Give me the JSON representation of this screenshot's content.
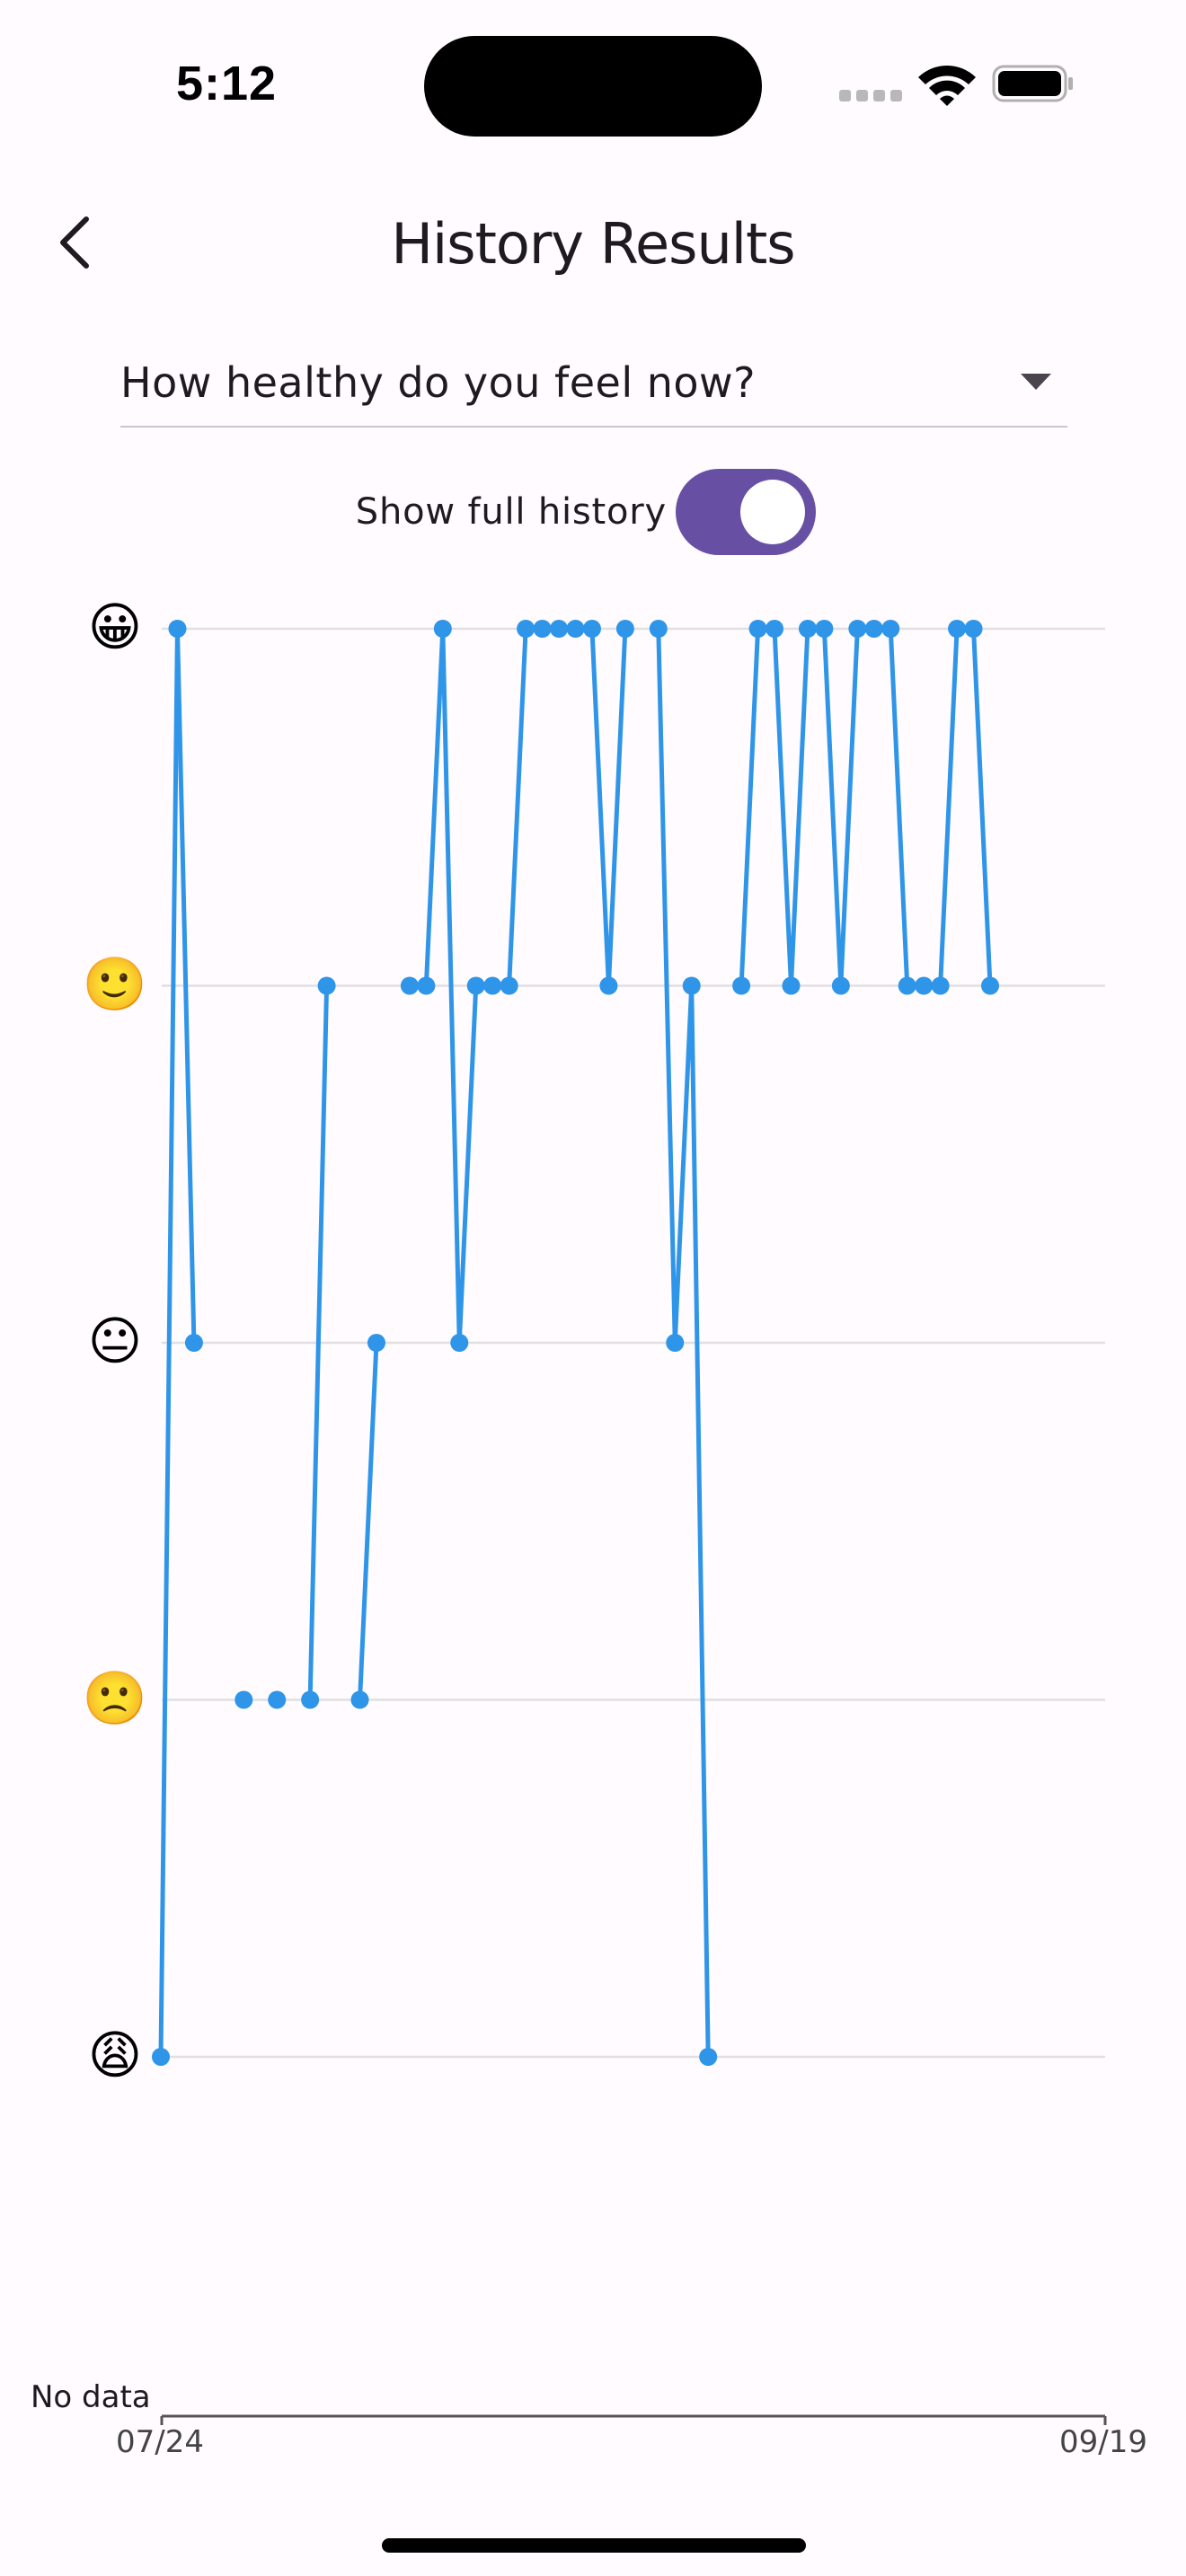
{
  "status_bar": {
    "time": "5:12"
  },
  "header": {
    "title": "History Results"
  },
  "question_select": {
    "selected": "How healthy do you feel now?"
  },
  "history_toggle": {
    "label": "Show full history",
    "checked": true
  },
  "colors": {
    "series": "#2f95e8",
    "accent": "#6750a4",
    "grid": "#e0e0e0"
  },
  "chart_data": {
    "type": "line",
    "y_levels": [
      {
        "value": 1,
        "emoji": "😩"
      },
      {
        "value": 2,
        "emoji": "🙁"
      },
      {
        "value": 3,
        "emoji": "😐"
      },
      {
        "value": 4,
        "emoji": "🙂"
      },
      {
        "value": 5,
        "emoji": "😀"
      }
    ],
    "ylim": [
      1,
      5
    ],
    "x_start_label": "07/24",
    "x_end_label": "09/19",
    "no_data_label": "No data",
    "grid": "horizontal",
    "series": [
      {
        "values": [
          1,
          5,
          3,
          null,
          null,
          2,
          null,
          2,
          null,
          2,
          4,
          null,
          2,
          3,
          null,
          4,
          4,
          5,
          3,
          4,
          4,
          4,
          5,
          5,
          5,
          5,
          5,
          4,
          5,
          null,
          5,
          3,
          4,
          1,
          null,
          4,
          5,
          5,
          4,
          5,
          5,
          4,
          5,
          5,
          5,
          4,
          4,
          4,
          5,
          5,
          4
        ]
      }
    ]
  }
}
